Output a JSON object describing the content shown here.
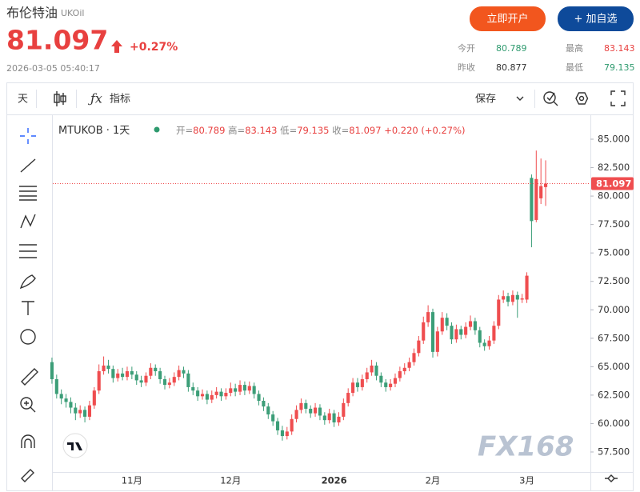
{
  "header": {
    "title": "布伦特油",
    "symbol": "UKOil",
    "price": "81.097",
    "change_pct": "+0.27%",
    "timestamp": "2026-03-05 05:40:17",
    "buttons": [
      "立即开户",
      "+ 加自选"
    ],
    "stats": [
      {
        "label": "今开",
        "value": "80.789"
      },
      {
        "label": "最高",
        "value": "83.143"
      },
      {
        "label": "昨收",
        "value": "80.877"
      },
      {
        "label": "最低",
        "value": "79.135"
      }
    ]
  },
  "toolbar": {
    "interval": "天",
    "indicators": "指标",
    "save": "保存"
  },
  "watermark": "FX168",
  "chart_data": {
    "type": "candlestick",
    "legend": {
      "symbol": "MTUKOB · 1天",
      "items": [
        {
          "label": "开=",
          "value": "80.789"
        },
        {
          "label": "高=",
          "value": "83.143"
        },
        {
          "label": "低=",
          "value": "79.135"
        },
        {
          "label": "收=",
          "value": "81.097"
        }
      ],
      "change": "+0.220 (+0.27%)"
    },
    "up_color": "#ef4d4f",
    "down_color": "#3c9e78",
    "categories": [
      null,
      null,
      null,
      null,
      null,
      null,
      null,
      null,
      null,
      null,
      null,
      null,
      null,
      null,
      null,
      null,
      null,
      "11月",
      null,
      null,
      null,
      null,
      null,
      null,
      null,
      null,
      null,
      null,
      null,
      null,
      null,
      null,
      null,
      null,
      null,
      null,
      null,
      null,
      "12月",
      null,
      null,
      null,
      null,
      null,
      null,
      null,
      null,
      null,
      null,
      null,
      null,
      null,
      null,
      null,
      null,
      null,
      null,
      null,
      null,
      null,
      "2026",
      null,
      null,
      null,
      null,
      null,
      null,
      null,
      null,
      null,
      null,
      null,
      null,
      null,
      null,
      null,
      null,
      null,
      null,
      null,
      null,
      "2月",
      null,
      null,
      null,
      null,
      null,
      null,
      null,
      null,
      null,
      null,
      null,
      null,
      null,
      null,
      null,
      null,
      null,
      null,
      null,
      "3月",
      null,
      null,
      null,
      null
    ],
    "open": [
      65.4,
      63.9,
      62.6,
      62.2,
      61.9,
      61.4,
      60.9,
      61.2,
      60.6,
      61.6,
      62.9,
      64.6,
      65.1,
      64.8,
      64.0,
      64.4,
      64.1,
      64.6,
      64.3,
      63.8,
      63.6,
      64.2,
      64.9,
      64.6,
      63.9,
      63.4,
      63.6,
      64.1,
      64.7,
      64.4,
      63.2,
      62.9,
      62.4,
      62.6,
      62.1,
      62.5,
      62.8,
      62.4,
      62.7,
      63.1,
      62.8,
      63.4,
      62.9,
      63.3,
      62.6,
      62.0,
      61.5,
      60.8,
      60.2,
      59.4,
      58.9,
      59.3,
      60.4,
      61.2,
      61.8,
      61.3,
      60.9,
      61.4,
      60.7,
      60.3,
      60.9,
      60.1,
      60.6,
      61.8,
      62.7,
      63.6,
      63.2,
      63.9,
      64.5,
      65.1,
      64.2,
      63.6,
      63.2,
      63.5,
      64.0,
      64.6,
      64.9,
      65.4,
      66.2,
      67.3,
      68.9,
      69.8,
      66.3,
      68.1,
      69.3,
      68.6,
      67.4,
      68.3,
      67.8,
      68.5,
      69.0,
      68.2,
      67.1,
      66.8,
      67.3,
      68.6,
      70.9,
      71.2,
      70.7,
      71.3,
      70.9,
      70.9,
      81.6,
      77.9,
      79.8,
      80.789
    ],
    "high": [
      65.8,
      64.3,
      63.0,
      62.6,
      62.3,
      61.8,
      61.6,
      61.5,
      62.0,
      63.2,
      65.2,
      65.9,
      65.6,
      65.1,
      64.8,
      64.9,
      65.0,
      65.0,
      64.6,
      64.2,
      64.5,
      65.3,
      65.2,
      64.9,
      64.2,
      64.0,
      64.5,
      65.1,
      65.0,
      64.7,
      63.6,
      63.2,
      63.0,
      62.9,
      62.9,
      63.2,
      63.1,
      63.1,
      63.6,
      63.5,
      63.8,
      63.7,
      63.7,
      63.6,
      62.9,
      62.3,
      61.8,
      61.1,
      60.5,
      59.8,
      59.7,
      60.8,
      61.6,
      62.2,
      62.1,
      61.6,
      61.8,
      61.7,
      61.0,
      61.3,
      61.2,
      61.0,
      62.2,
      63.1,
      64.0,
      64.0,
      64.3,
      64.9,
      65.6,
      65.4,
      64.5,
      63.9,
      63.9,
      64.4,
      65.0,
      65.3,
      65.8,
      66.6,
      67.7,
      69.4,
      70.4,
      70.1,
      68.5,
      69.8,
      69.7,
      68.9,
      68.7,
      68.6,
      68.9,
      69.5,
      69.3,
      68.5,
      67.4,
      67.7,
      69.0,
      71.3,
      71.7,
      71.5,
      71.7,
      71.6,
      71.4,
      73.3,
      81.9,
      84.0,
      83.3,
      83.143
    ],
    "low": [
      63.5,
      62.2,
      61.7,
      61.4,
      60.9,
      60.3,
      60.5,
      60.1,
      60.3,
      61.3,
      62.6,
      64.3,
      64.4,
      63.6,
      63.7,
      63.8,
      63.8,
      63.9,
      63.4,
      63.2,
      63.3,
      63.9,
      64.2,
      63.5,
      63.0,
      63.1,
      63.3,
      63.8,
      64.0,
      62.8,
      62.5,
      62.0,
      62.1,
      61.7,
      61.8,
      62.2,
      62.0,
      62.1,
      62.4,
      62.4,
      62.5,
      62.5,
      62.6,
      62.2,
      61.6,
      61.1,
      60.4,
      59.8,
      59.0,
      58.5,
      58.6,
      59.0,
      60.1,
      60.9,
      60.9,
      60.5,
      60.6,
      60.3,
      59.9,
      60.0,
      59.7,
      59.8,
      60.3,
      61.5,
      62.4,
      62.8,
      62.9,
      63.6,
      64.2,
      63.8,
      63.2,
      62.8,
      62.9,
      63.2,
      63.7,
      64.3,
      64.6,
      65.1,
      65.9,
      67.0,
      68.5,
      65.8,
      65.9,
      67.8,
      68.2,
      67.0,
      67.1,
      67.4,
      67.5,
      68.2,
      67.8,
      66.7,
      66.4,
      66.5,
      67.0,
      68.3,
      70.6,
      70.3,
      70.4,
      69.3,
      70.6,
      70.6,
      75.5,
      77.7,
      79.3,
      79.135
    ],
    "close": [
      63.9,
      62.6,
      62.2,
      61.9,
      61.4,
      60.9,
      61.2,
      60.6,
      61.6,
      62.9,
      64.6,
      65.1,
      64.8,
      64.0,
      64.4,
      64.1,
      64.6,
      64.3,
      63.8,
      63.6,
      64.2,
      64.9,
      64.6,
      63.9,
      63.4,
      63.6,
      64.1,
      64.7,
      64.4,
      63.2,
      62.9,
      62.4,
      62.6,
      62.1,
      62.5,
      62.8,
      62.4,
      62.7,
      63.1,
      62.8,
      63.4,
      62.9,
      63.3,
      62.6,
      62.0,
      61.5,
      60.8,
      60.2,
      59.4,
      58.9,
      59.3,
      60.4,
      61.2,
      61.8,
      61.3,
      60.9,
      61.4,
      60.7,
      60.3,
      60.9,
      60.1,
      60.6,
      61.8,
      62.7,
      63.6,
      63.2,
      63.9,
      64.5,
      65.1,
      64.2,
      63.6,
      63.2,
      63.5,
      64.0,
      64.6,
      64.9,
      65.4,
      66.2,
      67.3,
      68.9,
      69.8,
      66.3,
      68.1,
      69.3,
      68.6,
      67.4,
      68.3,
      67.8,
      68.5,
      69.0,
      68.2,
      67.1,
      66.8,
      67.3,
      68.6,
      70.9,
      71.2,
      70.7,
      71.3,
      70.9,
      71.0,
      73.0,
      77.8,
      81.5,
      80.877,
      81.097
    ],
    "ylim": [
      55.74,
      87.04
    ],
    "yticks": [
      {
        "value": 57.5,
        "label": "57.500"
      },
      {
        "value": 60,
        "label": "60.000"
      },
      {
        "value": 62.5,
        "label": "62.500"
      },
      {
        "value": 65,
        "label": "65.000"
      },
      {
        "value": 67.5,
        "label": "67.500"
      },
      {
        "value": 70,
        "label": "70.000"
      },
      {
        "value": 72.5,
        "label": "72.500"
      },
      {
        "value": 75,
        "label": "75.000"
      },
      {
        "value": 77.5,
        "label": "77.500"
      },
      {
        "value": 80,
        "label": "80.000"
      },
      {
        "value": 82.5,
        "label": "82.500"
      },
      {
        "value": 85,
        "label": "85.000"
      }
    ],
    "last_price": {
      "value": 81.097,
      "label": "81.097"
    },
    "grid": false
  }
}
